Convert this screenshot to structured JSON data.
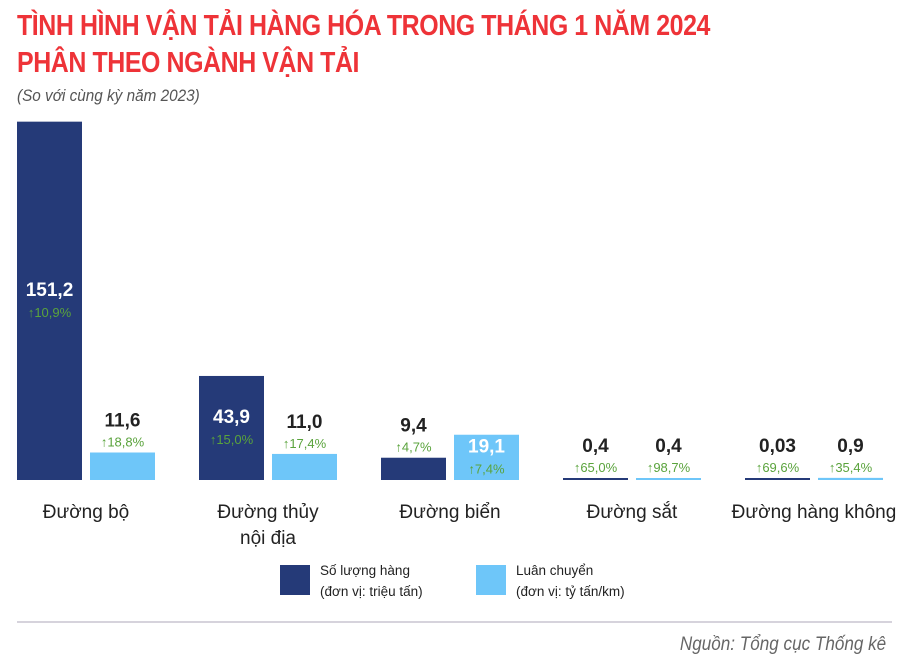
{
  "chart_data": {
    "type": "bar",
    "title": [
      "TÌNH HÌNH VẬN TẢI HÀNG HÓA TRONG THÁNG 1 NĂM 2024",
      "PHÂN THEO NGÀNH VẬN TẢI"
    ],
    "subtitle": "(So với cùng kỳ năm 2023)",
    "categories": [
      [
        "Đường bộ"
      ],
      [
        "Đường thủy",
        "nội địa"
      ],
      [
        "Đường biển"
      ],
      [
        "Đường sắt"
      ],
      [
        "Đường hàng không"
      ]
    ],
    "series": [
      {
        "name": "Số lượng hàng",
        "unit": "(đơn vị: triệu tấn)",
        "color": "#253a78",
        "values": [
          151.2,
          43.9,
          9.4,
          0.4,
          0.03
        ],
        "labels": [
          "151,2",
          "43,9",
          "9,4",
          "0,4",
          "0,03"
        ],
        "changes": [
          "10,9%",
          "15,0%",
          "4,7%",
          "65,0%",
          "69,6%"
        ]
      },
      {
        "name": "Luân chuyển",
        "unit": "(đơn vị: tỷ tấn/km)",
        "color": "#6ec6f9",
        "values": [
          11.6,
          11.0,
          19.1,
          0.4,
          0.9
        ],
        "labels": [
          "11,6",
          "11,0",
          "19,1",
          "0,4",
          "0,9"
        ],
        "changes": [
          "18,8%",
          "17,4%",
          "7,4%",
          "98,7%",
          "35,4%"
        ]
      }
    ],
    "change_direction": "up",
    "change_color": "#5aa33c",
    "legend": "bottom",
    "grid": false
  },
  "source": "Nguồn: Tổng cục Thống kê"
}
